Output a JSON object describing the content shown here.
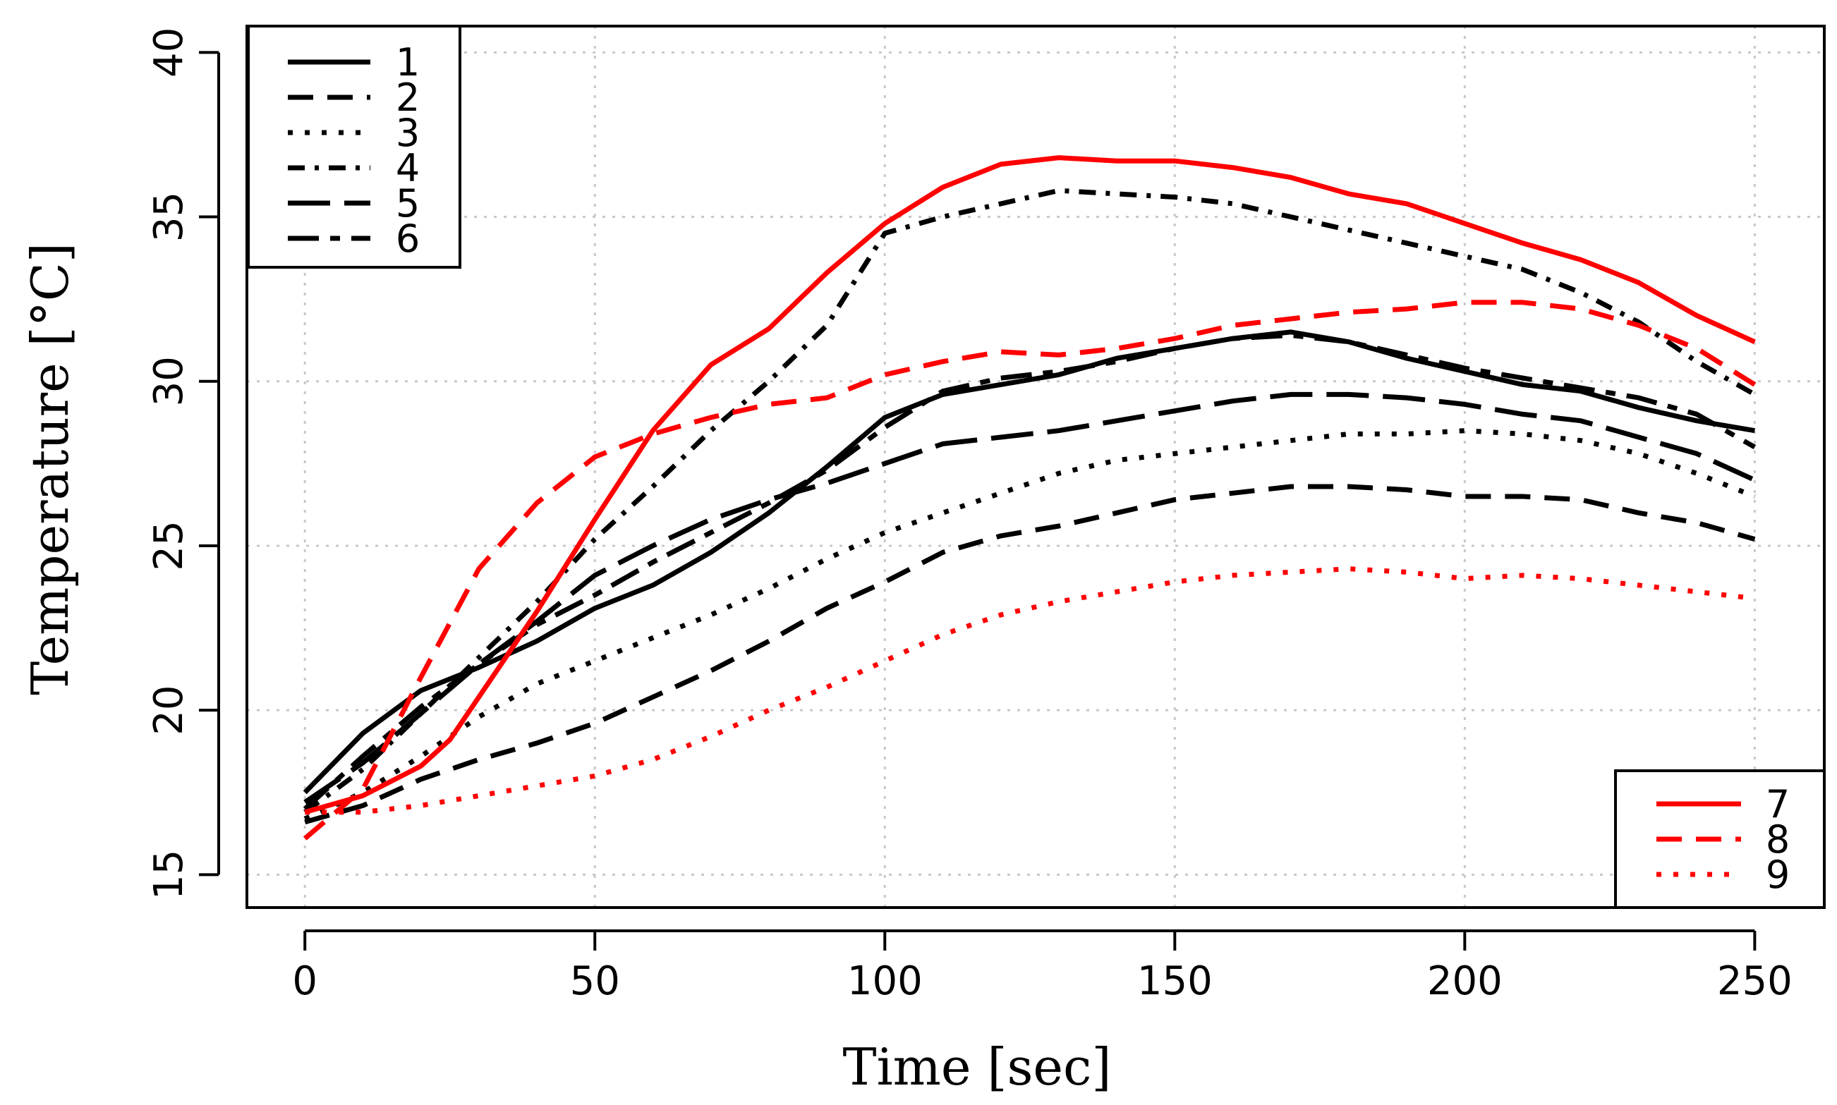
{
  "chart_data": {
    "type": "line",
    "xlabel": "Time [sec]",
    "ylabel": "Temperature [°C]",
    "xlim": [
      -10,
      262
    ],
    "ylim": [
      14,
      40.8
    ],
    "xticks": [
      0,
      50,
      100,
      150,
      200,
      250
    ],
    "yticks": [
      15,
      20,
      25,
      30,
      35,
      40
    ],
    "grid": true,
    "legends": [
      {
        "position": "top-left",
        "entries": [
          "1",
          "2",
          "3",
          "4",
          "5",
          "6"
        ]
      },
      {
        "position": "bottom-right",
        "entries": [
          "7",
          "8",
          "9"
        ]
      }
    ],
    "series": [
      {
        "name": "1",
        "color": "#000000",
        "dash": "solid",
        "x": [
          0,
          10,
          20,
          30,
          40,
          50,
          60,
          70,
          80,
          90,
          100,
          110,
          120,
          130,
          140,
          150,
          160,
          170,
          180,
          190,
          200,
          210,
          220,
          230,
          240,
          250
        ],
        "y": [
          17.5,
          19.3,
          20.6,
          21.3,
          22.1,
          23.1,
          23.8,
          24.8,
          26.0,
          27.4,
          28.9,
          29.6,
          29.9,
          30.2,
          30.7,
          31.0,
          31.3,
          31.5,
          31.2,
          30.7,
          30.3,
          29.9,
          29.7,
          29.2,
          28.8,
          28.5
        ]
      },
      {
        "name": "2",
        "color": "#000000",
        "dash": "dash",
        "x": [
          0,
          10,
          20,
          30,
          40,
          50,
          60,
          70,
          80,
          90,
          100,
          110,
          120,
          130,
          140,
          150,
          160,
          170,
          180,
          190,
          200,
          210,
          220,
          230,
          240,
          250
        ],
        "y": [
          16.6,
          17.1,
          17.9,
          18.5,
          19.0,
          19.6,
          20.4,
          21.2,
          22.1,
          23.1,
          23.9,
          24.8,
          25.3,
          25.6,
          26.0,
          26.4,
          26.6,
          26.8,
          26.8,
          26.7,
          26.5,
          26.5,
          26.4,
          26.0,
          25.7,
          25.2
        ]
      },
      {
        "name": "3",
        "color": "#000000",
        "dash": "dot",
        "x": [
          0,
          10,
          20,
          30,
          40,
          50,
          60,
          70,
          80,
          90,
          100,
          110,
          120,
          130,
          140,
          150,
          160,
          170,
          180,
          190,
          200,
          210,
          220,
          230,
          240,
          250
        ],
        "y": [
          16.7,
          17.5,
          18.6,
          19.8,
          20.8,
          21.5,
          22.2,
          22.9,
          23.7,
          24.6,
          25.4,
          26.0,
          26.6,
          27.2,
          27.6,
          27.8,
          28.0,
          28.2,
          28.4,
          28.4,
          28.5,
          28.4,
          28.2,
          27.8,
          27.2,
          26.5
        ]
      },
      {
        "name": "4",
        "color": "#000000",
        "dash": "dashdot",
        "x": [
          0,
          10,
          20,
          30,
          40,
          50,
          60,
          70,
          80,
          90,
          100,
          110,
          120,
          130,
          140,
          150,
          160,
          170,
          180,
          190,
          200,
          210,
          220,
          230,
          240,
          250
        ],
        "y": [
          16.9,
          18.2,
          19.9,
          21.6,
          23.3,
          25.2,
          26.8,
          28.5,
          30.0,
          31.7,
          34.5,
          35.0,
          35.4,
          35.8,
          35.7,
          35.6,
          35.4,
          35.0,
          34.6,
          34.2,
          33.8,
          33.4,
          32.7,
          31.8,
          30.6,
          29.6
        ]
      },
      {
        "name": "5",
        "color": "#000000",
        "dash": "longdash",
        "x": [
          0,
          10,
          20,
          30,
          40,
          50,
          60,
          70,
          80,
          90,
          100,
          110,
          120,
          130,
          140,
          150,
          160,
          170,
          180,
          190,
          200,
          210,
          220,
          230,
          240,
          250
        ],
        "y": [
          17.2,
          18.4,
          19.9,
          21.4,
          22.7,
          24.1,
          25.0,
          25.8,
          26.4,
          26.9,
          27.5,
          28.1,
          28.3,
          28.5,
          28.8,
          29.1,
          29.4,
          29.6,
          29.6,
          29.5,
          29.3,
          29.0,
          28.8,
          28.3,
          27.8,
          27.0
        ]
      },
      {
        "name": "6",
        "color": "#000000",
        "dash": "twodash",
        "x": [
          0,
          10,
          20,
          30,
          40,
          50,
          60,
          70,
          80,
          90,
          100,
          110,
          120,
          130,
          140,
          150,
          160,
          170,
          180,
          190,
          200,
          210,
          220,
          230,
          240,
          250
        ],
        "y": [
          17.0,
          18.6,
          20.1,
          21.4,
          22.6,
          23.5,
          24.5,
          25.4,
          26.3,
          27.3,
          28.6,
          29.7,
          30.1,
          30.3,
          30.6,
          31.0,
          31.3,
          31.4,
          31.2,
          30.8,
          30.4,
          30.1,
          29.8,
          29.5,
          29.0,
          28.0
        ]
      },
      {
        "name": "7",
        "color": "#ff0000",
        "dash": "solid",
        "x": [
          0,
          10,
          20,
          25,
          30,
          40,
          50,
          60,
          70,
          80,
          90,
          100,
          110,
          120,
          130,
          140,
          150,
          160,
          170,
          180,
          190,
          200,
          210,
          220,
          230,
          240,
          250
        ],
        "y": [
          16.9,
          17.4,
          18.3,
          19.1,
          20.4,
          23.0,
          25.8,
          28.5,
          30.5,
          31.6,
          33.3,
          34.8,
          35.9,
          36.6,
          36.8,
          36.7,
          36.7,
          36.5,
          36.2,
          35.7,
          35.4,
          34.8,
          34.2,
          33.7,
          33.0,
          32.0,
          31.2
        ]
      },
      {
        "name": "8",
        "color": "#ff0000",
        "dash": "dash",
        "x": [
          0,
          10,
          20,
          30,
          40,
          50,
          60,
          70,
          80,
          90,
          100,
          110,
          120,
          130,
          140,
          150,
          160,
          170,
          180,
          190,
          200,
          210,
          220,
          230,
          240,
          250
        ],
        "y": [
          16.1,
          17.6,
          21.0,
          24.3,
          26.3,
          27.7,
          28.4,
          28.9,
          29.3,
          29.5,
          30.2,
          30.6,
          30.9,
          30.8,
          31.0,
          31.3,
          31.7,
          31.9,
          32.1,
          32.2,
          32.4,
          32.4,
          32.2,
          31.7,
          31.0,
          29.9
        ]
      },
      {
        "name": "9",
        "color": "#ff0000",
        "dash": "dot",
        "x": [
          0,
          10,
          20,
          30,
          40,
          50,
          60,
          70,
          80,
          90,
          100,
          110,
          120,
          130,
          140,
          150,
          160,
          170,
          180,
          190,
          200,
          210,
          220,
          230,
          240,
          250
        ],
        "y": [
          16.9,
          16.9,
          17.1,
          17.4,
          17.7,
          18.0,
          18.5,
          19.2,
          20.0,
          20.7,
          21.5,
          22.3,
          22.9,
          23.3,
          23.6,
          23.9,
          24.1,
          24.2,
          24.3,
          24.2,
          24.0,
          24.1,
          24.0,
          23.8,
          23.6,
          23.4
        ]
      }
    ]
  }
}
